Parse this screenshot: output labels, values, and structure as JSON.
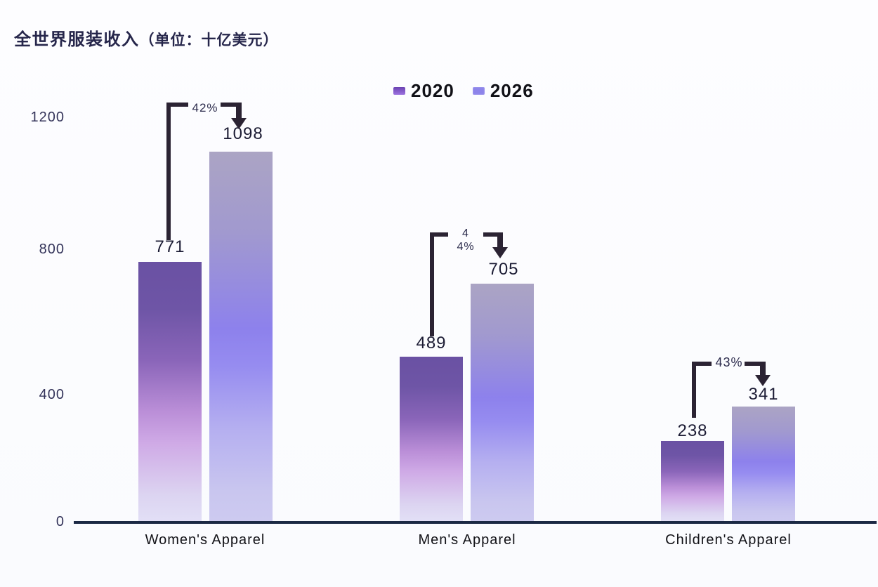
{
  "title": {
    "main": "全世界服装收入",
    "unit": "（单位：十亿美元）"
  },
  "legend": {
    "items": [
      {
        "label": "2020",
        "color": "#7b52c4"
      },
      {
        "label": "2026",
        "color": "#8d84ea"
      }
    ]
  },
  "chart_data": {
    "type": "bar",
    "title": "全世界服装收入（单位：十亿美元）",
    "unit": "十亿美元",
    "categories": [
      "Women's Apparel",
      "Men's Apparel",
      "Children's Apparel"
    ],
    "series": [
      {
        "name": "2020",
        "values": [
          771,
          489,
          238
        ]
      },
      {
        "name": "2026",
        "values": [
          1098,
          705,
          341
        ]
      }
    ],
    "growth": [
      "42%",
      "44%",
      "43%"
    ],
    "y_ticks": [
      0,
      400,
      800,
      1200
    ],
    "ylim": [
      0,
      1200
    ],
    "xlabel": "",
    "ylabel": "",
    "grid": false,
    "legend_position": "top-center",
    "colors": {
      "bar_2020_top": "#6a51a3",
      "bar_2020_mid": "#bb8fd8",
      "bar_2020_bottom": "#e2dff6",
      "bar_2026_top": "#aba4c4",
      "bar_2026_mid": "#8d81ec",
      "bar_2026_bottom": "#cdcaf0",
      "annotation": "#2b2333",
      "axis_line": "#1b2944",
      "title_text": "#26264b",
      "tick_text": "#34345a"
    }
  }
}
